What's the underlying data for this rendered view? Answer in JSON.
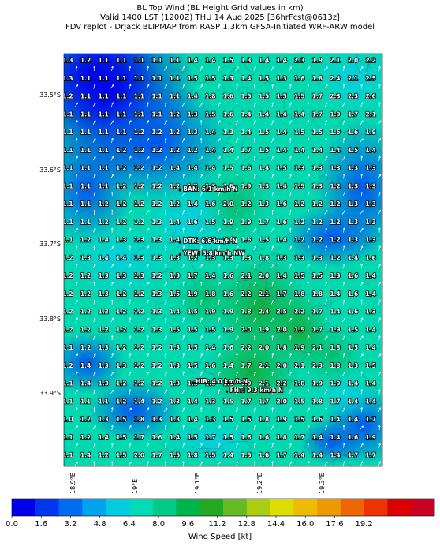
{
  "title": {
    "line1": "BL Top Wind (BL Height Grid values in km)",
    "line2": "Valid 1400 LST (1200Z) THU 14 Aug 2025 [36hrFcst@0613z]",
    "line3": "FDV replot - DrJack BLIPMAP from RASP 1.3km GFSA-Initiated WRF-ARW model"
  },
  "axes": {
    "lat_labels": [
      "33.5°S",
      "33.6°S",
      "33.7°S",
      "33.8°S",
      "33.9°S"
    ],
    "lat_values": [
      -33.5,
      -33.6,
      -33.7,
      -33.8,
      -33.9
    ],
    "lon_labels": [
      "18.9°E",
      "19°E",
      "19.1°E",
      "19.2°E",
      "19.3°E"
    ],
    "lon_values": [
      18.9,
      19.0,
      19.1,
      19.2,
      19.3
    ]
  },
  "grid_values": [
    [
      "1.3",
      "1.2",
      "1.1",
      "1.1",
      "1.1",
      "1.1",
      "1.1",
      "1.4",
      "1.4",
      "1.5",
      "1.3",
      "1.4",
      "1.4",
      "2.3",
      "1.9",
      "2.1",
      "2.0",
      "2.2"
    ],
    [
      "1.3",
      "1.1",
      "1.1",
      "1.1",
      "1.1",
      "1.1",
      "1.1",
      "1.5",
      "1.5",
      "1.3",
      "1.4",
      "1.5",
      "1.3",
      "1.6",
      "1.8",
      "2.4",
      "2.1",
      "2.5"
    ],
    [
      "1.2",
      "1.1",
      "1.1",
      "1.1",
      "1.1",
      "1.1",
      "1.1",
      "1.4",
      "1.8",
      "1.6",
      "1.5",
      "1.5",
      "1.5",
      "1.5",
      "1.7",
      "2.3",
      "2.3",
      "2.6"
    ],
    [
      "1.1",
      "1.1",
      "1.1",
      "1.1",
      "1.1",
      "1.1",
      "1.2",
      "1.3",
      "1.5",
      "1.6",
      "1.4",
      "1.4",
      "1.4",
      "1.4",
      "1.7",
      "1.9",
      "1.7",
      "2.1"
    ],
    [
      "1.1",
      "1.1",
      "1.1",
      "1.1",
      "1.2",
      "1.2",
      "1.2",
      "1.3",
      "1.4",
      "1.3",
      "1.4",
      "1.5",
      "1.4",
      "1.5",
      "1.5",
      "1.6",
      "1.6",
      "1.9"
    ],
    [
      "1.1",
      "1.1",
      "1.1",
      "1.2",
      "1.2",
      "1.2",
      "1.2",
      "1.2",
      "1.4",
      "1.4",
      "1.7",
      "1.5",
      "1.4",
      "1.4",
      "1.4",
      "1.4",
      "1.5",
      "1.4"
    ],
    [
      "1.1",
      "1.1",
      "1.1",
      "1.2",
      "1.2",
      "1.2",
      "1.4",
      "1.4",
      "1.4",
      "1.5",
      "1.6",
      "1.4",
      "1.5",
      "1.3",
      "1.3",
      "1.3",
      "1.3",
      "1.3"
    ],
    [
      "1.1",
      "1.1",
      "1.1",
      "1.2",
      "1.2",
      "1.2",
      "1.2",
      "1.2",
      "1.3",
      "1.6",
      "1.9",
      "1.3",
      "1.4",
      "1.5",
      "1.3",
      "1.2",
      "1.3",
      "1.3"
    ],
    [
      "1.1",
      "1.1",
      "1.2",
      "1.2",
      "1.2",
      "1.2",
      "1.2",
      "1.4",
      "1.6",
      "2.0",
      "1.2",
      "1.3",
      "1.6",
      "1.2",
      "1.2",
      "1.2",
      "1.3",
      "1.3"
    ],
    [
      "1.1",
      "1.1",
      "1.2",
      "1.2",
      "1.2",
      "1.3",
      "1.4",
      "1.6",
      "1.5",
      "1.9",
      "1.9",
      "1.7",
      "1.6",
      "1.2",
      "1.2",
      "1.2",
      "1.3",
      "1.3"
    ],
    [
      "1.1",
      "1.2",
      "1.4",
      "1.3",
      "1.3",
      "1.3",
      "1.4",
      "1.2",
      "1.3",
      "1.4",
      "1.6",
      "1.5",
      "1.4",
      "1.2",
      "1.2",
      "1.2",
      "1.3",
      "1.3"
    ],
    [
      "1.2",
      "1.3",
      "1.4",
      "1.4",
      "1.3",
      "1.3",
      "1.3",
      "1.2",
      "1.3",
      "1.3",
      "1.3",
      "1.8",
      "1.3",
      "1.3",
      "1.3",
      "1.2",
      "1.4",
      "1.6"
    ],
    [
      "1.2",
      "1.2",
      "1.3",
      "1.3",
      "1.3",
      "1.2",
      "1.3",
      "1.7",
      "1.4",
      "1.6",
      "2.1",
      "2.0",
      "1.4",
      "1.5",
      "1.5",
      "1.3",
      "1.6",
      "1.4"
    ],
    [
      "1.2",
      "1.2",
      "1.3",
      "1.2",
      "1.2",
      "1.3",
      "1.5",
      "1.9",
      "1.8",
      "1.6",
      "2.2",
      "2.1",
      "1.7",
      "1.8",
      "1.8",
      "1.4",
      "1.6",
      "1.4"
    ],
    [
      "1.2",
      "1.2",
      "1.2",
      "1.2",
      "1.2",
      "1.3",
      "1.4",
      "1.5",
      "1.9",
      "1.9",
      "1.8",
      "2.4",
      "2.5",
      "2.2",
      "1.7",
      "1.4",
      "1.6",
      "1.3"
    ],
    [
      "1.2",
      "1.2",
      "1.2",
      "1.2",
      "1.2",
      "1.3",
      "1.5",
      "1.5",
      "1.5",
      "1.9",
      "2.0",
      "1.9",
      "2.0",
      "1.5",
      "1.7",
      "1.9",
      "1.5",
      "1.4"
    ],
    [
      "1.1",
      "1.2",
      "1.3",
      "1.2",
      "1.2",
      "1.2",
      "1.3",
      "1.5",
      "1.4",
      "1.6",
      "2.2",
      "2.0",
      "1.8",
      "1.9",
      "2.1",
      "1.8",
      "1.5",
      "1.4"
    ],
    [
      "1.2",
      "1.4",
      "1.3",
      "1.3",
      "1.2",
      "1.2",
      "1.3",
      "1.5",
      "1.6",
      "1.4",
      "1.7",
      "2.1",
      "2.0",
      "2.1",
      "2.3",
      "1.8",
      "1.3",
      "1.5"
    ],
    [
      "1.1",
      "1.4",
      "1.3",
      "1.2",
      "1.2",
      "1.2",
      "1.3",
      "1.3",
      "1.5",
      "1.9",
      "1.9",
      "2.1",
      "2.2",
      "1.8",
      "1.9",
      "1.9",
      "1.4",
      "1.4"
    ],
    [
      "1.1",
      "1.1",
      "1.1",
      "1.2",
      "1.4",
      "1.2",
      "1.3",
      "1.4",
      "1.3",
      "1.5",
      "1.7",
      "1.7",
      "2.0",
      "1.5",
      "1.8",
      "1.7",
      "1.4",
      "1.4"
    ],
    [
      "1.0",
      "1.2",
      "1.3",
      "1.5",
      "1.8",
      "1.3",
      "1.3",
      "1.4",
      "1.3",
      "1.5",
      "1.5",
      "1.8",
      "1.9",
      "1.5",
      "1.6",
      "1.4",
      "1.4",
      "1.7"
    ],
    [
      "1.1",
      "1.2",
      "1.4",
      "1.5",
      "1.7",
      "1.6",
      "1.4",
      "1.5",
      "1.7",
      "1.5",
      "1.6",
      "1.6",
      "1.8",
      "1.7",
      "1.4",
      "1.4",
      "1.6",
      "1.9"
    ],
    [
      "1.1",
      "1.4",
      "1.2",
      "1.5",
      "2.0",
      "1.7",
      "1.5",
      "1.8",
      "1.5",
      "1.4",
      "1.5",
      "1.6",
      "1.7",
      "1.4",
      "1.4",
      "1.4",
      "1.7",
      "1.7"
    ]
  ],
  "stations": [
    {
      "label": "BAN: 6.1 km/h N",
      "lon": 19.07,
      "lat": -33.627
    },
    {
      "label": "DTK: 6.6 km/h N",
      "lon": 19.07,
      "lat": -33.697
    },
    {
      "label": "YEW: 5.8 km/h NW",
      "lon": 19.07,
      "lat": -33.713
    },
    {
      "label": "HIB: 4.0 km/h N",
      "lon": 19.09,
      "lat": -33.885
    },
    {
      "label": "FHT: 9.3 km/h N",
      "lon": 19.145,
      "lat": -33.897
    }
  ],
  "colorbar": {
    "title": "Wind Speed [kt]",
    "tick_labels": [
      "0.0",
      "1.6",
      "3.2",
      "4.8",
      "6.4",
      "8.0",
      "9.6",
      "11.2",
      "12.8",
      "14.4",
      "16.0",
      "17.6",
      "19.2"
    ],
    "colors": [
      "#0000ee",
      "#0036f0",
      "#006cf2",
      "#00a4ee",
      "#00cce0",
      "#00dcb8",
      "#00cc88",
      "#00b44c",
      "#22aa22",
      "#66bb22",
      "#aacc11",
      "#dddd00",
      "#eebb00",
      "#ee9900",
      "#ee6600",
      "#ee3300",
      "#dd0000",
      "#cc0022"
    ]
  }
}
